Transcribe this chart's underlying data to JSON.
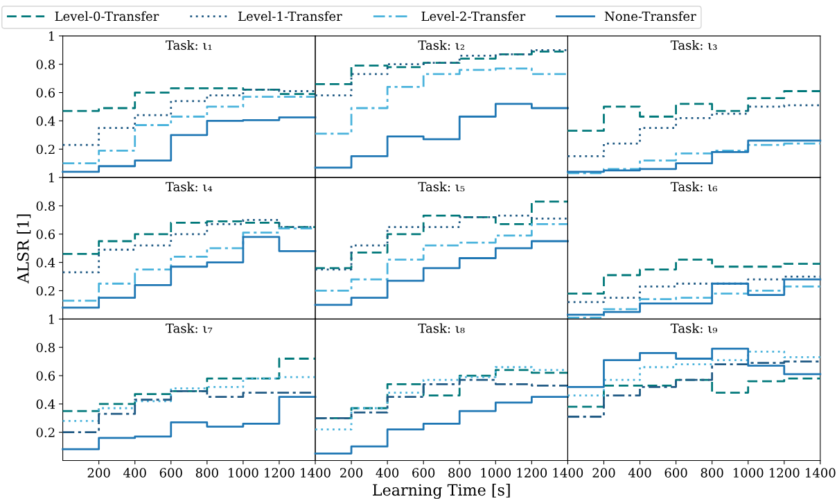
{
  "chart_data": [
    {
      "type": "step",
      "title": "Task: ι₁",
      "legend": "top",
      "xlim": [
        0,
        1400
      ],
      "ylim": [
        0,
        1
      ],
      "yticks": [
        0.2,
        0.4,
        0.6,
        0.8,
        1
      ],
      "tick_labels": "y",
      "x": [
        0,
        200,
        400,
        600,
        800,
        1000,
        1200,
        1400
      ],
      "series": [
        {
          "name": "Level-0-Transfer",
          "color": "#00787a",
          "line_style": "dashed",
          "values": [
            0.47,
            0.49,
            0.6,
            0.63,
            0.63,
            0.62,
            0.59,
            0.59
          ]
        },
        {
          "name": "Level-1-Transfer",
          "color": "#205a84",
          "line_style": "dotted",
          "values": [
            0.23,
            0.35,
            0.44,
            0.54,
            0.58,
            0.62,
            0.61,
            0.61
          ]
        },
        {
          "name": "Level-2-Transfer",
          "color": "#4ab3dc",
          "line_style": "dashdot",
          "values": [
            0.1,
            0.19,
            0.37,
            0.43,
            0.5,
            0.57,
            0.57,
            0.57
          ]
        },
        {
          "name": "None-Transfer",
          "color": "#1f77b4",
          "line_style": "solid",
          "values": [
            0.04,
            0.08,
            0.12,
            0.3,
            0.4,
            0.405,
            0.425,
            0.425
          ]
        }
      ]
    },
    {
      "type": "step",
      "title": "Task: ι₂",
      "xlim": [
        0,
        1400
      ],
      "ylim": [
        0,
        1
      ],
      "tick_labels": false,
      "x": [
        0,
        200,
        400,
        600,
        800,
        1000,
        1200,
        1400
      ],
      "series": [
        {
          "color": "#00787a",
          "line_style": "dashed",
          "values": [
            0.66,
            0.79,
            0.78,
            0.81,
            0.84,
            0.87,
            0.89,
            0.89
          ]
        },
        {
          "color": "#205a84",
          "line_style": "dotted",
          "values": [
            0.58,
            0.73,
            0.8,
            0.81,
            0.86,
            0.87,
            0.9,
            0.9
          ]
        },
        {
          "color": "#4ab3dc",
          "line_style": "dashdot",
          "values": [
            0.31,
            0.49,
            0.64,
            0.73,
            0.76,
            0.77,
            0.73,
            0.73
          ]
        },
        {
          "color": "#1f77b4",
          "line_style": "solid",
          "values": [
            0.07,
            0.15,
            0.29,
            0.27,
            0.43,
            0.52,
            0.49,
            0.49
          ]
        }
      ]
    },
    {
      "type": "step",
      "title": "Task: ι₃",
      "xlim": [
        0,
        1400
      ],
      "ylim": [
        0,
        1
      ],
      "tick_labels": false,
      "x": [
        0,
        200,
        400,
        600,
        800,
        1000,
        1200,
        1400
      ],
      "series": [
        {
          "color": "#00787a",
          "line_style": "dashed",
          "values": [
            0.33,
            0.5,
            0.43,
            0.52,
            0.47,
            0.56,
            0.61,
            0.61
          ]
        },
        {
          "color": "#205a84",
          "line_style": "dotted",
          "values": [
            0.15,
            0.24,
            0.35,
            0.42,
            0.45,
            0.5,
            0.51,
            0.51
          ]
        },
        {
          "color": "#4ab3dc",
          "line_style": "dashdot",
          "values": [
            0.03,
            0.06,
            0.12,
            0.17,
            0.19,
            0.23,
            0.24,
            0.24
          ]
        },
        {
          "color": "#1f77b4",
          "line_style": "solid",
          "values": [
            0.04,
            0.05,
            0.06,
            0.1,
            0.18,
            0.26,
            0.26,
            0.26
          ]
        }
      ]
    },
    {
      "type": "step",
      "title": "Task: ι₄",
      "ylabel": "ALSR [1]",
      "xlim": [
        0,
        1400
      ],
      "ylim": [
        0,
        1
      ],
      "yticks": [
        0.2,
        0.4,
        0.6,
        0.8,
        1
      ],
      "tick_labels": "y",
      "x": [
        0,
        200,
        400,
        600,
        800,
        1000,
        1200,
        1400
      ],
      "series": [
        {
          "color": "#00787a",
          "line_style": "dashed",
          "values": [
            0.46,
            0.55,
            0.6,
            0.68,
            0.69,
            0.68,
            0.65,
            0.65
          ]
        },
        {
          "color": "#205a84",
          "line_style": "dotted",
          "values": [
            0.33,
            0.49,
            0.52,
            0.6,
            0.67,
            0.7,
            0.65,
            0.65
          ]
        },
        {
          "color": "#4ab3dc",
          "line_style": "dashdot",
          "values": [
            0.13,
            0.25,
            0.35,
            0.44,
            0.5,
            0.61,
            0.64,
            0.64
          ]
        },
        {
          "color": "#1f77b4",
          "line_style": "solid",
          "values": [
            0.08,
            0.15,
            0.24,
            0.37,
            0.4,
            0.58,
            0.48,
            0.48
          ]
        }
      ]
    },
    {
      "type": "step",
      "title": "Task: ι₅",
      "xlim": [
        0,
        1400
      ],
      "ylim": [
        0,
        1
      ],
      "tick_labels": false,
      "x": [
        0,
        200,
        400,
        600,
        800,
        1000,
        1200,
        1400
      ],
      "series": [
        {
          "color": "#00787a",
          "line_style": "dashed",
          "values": [
            0.36,
            0.47,
            0.6,
            0.73,
            0.72,
            0.67,
            0.83,
            0.83
          ]
        },
        {
          "color": "#205a84",
          "line_style": "dotted",
          "values": [
            0.35,
            0.52,
            0.65,
            0.65,
            0.72,
            0.73,
            0.71,
            0.71
          ]
        },
        {
          "color": "#4ab3dc",
          "line_style": "dashdot",
          "values": [
            0.2,
            0.28,
            0.42,
            0.52,
            0.54,
            0.59,
            0.67,
            0.67
          ]
        },
        {
          "color": "#1f77b4",
          "line_style": "solid",
          "values": [
            0.1,
            0.15,
            0.27,
            0.36,
            0.43,
            0.5,
            0.55,
            0.55
          ]
        }
      ]
    },
    {
      "type": "step",
      "title": "Task: ι₆",
      "xlim": [
        0,
        1400
      ],
      "ylim": [
        0,
        1
      ],
      "tick_labels": false,
      "x": [
        0,
        200,
        400,
        600,
        800,
        1000,
        1200,
        1400
      ],
      "series": [
        {
          "color": "#00787a",
          "line_style": "dashed",
          "values": [
            0.18,
            0.31,
            0.35,
            0.42,
            0.37,
            0.37,
            0.39,
            0.39
          ]
        },
        {
          "color": "#205a84",
          "line_style": "dotted",
          "values": [
            0.12,
            0.15,
            0.23,
            0.25,
            0.25,
            0.28,
            0.3,
            0.3
          ]
        },
        {
          "color": "#4ab3dc",
          "line_style": "dashdot",
          "values": [
            0.01,
            0.07,
            0.14,
            0.15,
            0.18,
            0.2,
            0.23,
            0.23
          ]
        },
        {
          "color": "#1f77b4",
          "line_style": "solid",
          "values": [
            0.03,
            0.05,
            0.11,
            0.11,
            0.25,
            0.17,
            0.28,
            0.28
          ]
        }
      ]
    },
    {
      "type": "step",
      "title": "Task: ι₇",
      "xlim": [
        0,
        1400
      ],
      "ylim": [
        0,
        1
      ],
      "yticks": [
        0.2,
        0.4,
        0.6,
        0.8,
        1
      ],
      "xticks": [
        200,
        400,
        600,
        800,
        1000,
        1200,
        1400
      ],
      "x": [
        0,
        200,
        400,
        600,
        800,
        1000,
        1200,
        1400
      ],
      "series": [
        {
          "color": "#00787a",
          "line_style": "dashed",
          "values": [
            0.35,
            0.4,
            0.47,
            0.49,
            0.58,
            0.58,
            0.72,
            0.72
          ]
        },
        {
          "color": "#4ab3dc",
          "line_style": "dotted",
          "values": [
            0.28,
            0.37,
            0.42,
            0.51,
            0.52,
            0.58,
            0.59,
            0.59
          ]
        },
        {
          "color": "#205a84",
          "line_style": "dashdot",
          "values": [
            0.2,
            0.33,
            0.43,
            0.49,
            0.45,
            0.48,
            0.48,
            0.48
          ]
        },
        {
          "color": "#1f77b4",
          "line_style": "solid",
          "values": [
            0.08,
            0.16,
            0.17,
            0.27,
            0.24,
            0.26,
            0.45,
            0.45
          ]
        }
      ]
    },
    {
      "type": "step",
      "title": "Task: ι₈",
      "xlabel": "Learning Time [s]",
      "xlim": [
        0,
        1400
      ],
      "ylim": [
        0,
        1
      ],
      "xticks": [
        200,
        400,
        600,
        800,
        1000,
        1200,
        1400
      ],
      "tick_labels": "x",
      "x": [
        0,
        200,
        400,
        600,
        800,
        1000,
        1200,
        1400
      ],
      "series": [
        {
          "color": "#00787a",
          "line_style": "dashed",
          "values": [
            0.3,
            0.37,
            0.54,
            0.46,
            0.6,
            0.64,
            0.62,
            0.62
          ]
        },
        {
          "color": "#4ab3dc",
          "line_style": "dotted",
          "values": [
            0.22,
            0.37,
            0.48,
            0.57,
            0.59,
            0.66,
            0.64,
            0.64
          ]
        },
        {
          "color": "#205a84",
          "line_style": "dashdot",
          "values": [
            0.3,
            0.34,
            0.45,
            0.54,
            0.57,
            0.54,
            0.53,
            0.53
          ]
        },
        {
          "color": "#1f77b4",
          "line_style": "solid",
          "values": [
            0.05,
            0.1,
            0.22,
            0.26,
            0.35,
            0.41,
            0.45,
            0.45
          ]
        }
      ]
    },
    {
      "type": "step",
      "title": "Task: ι₉",
      "xlim": [
        0,
        1400
      ],
      "ylim": [
        0,
        1
      ],
      "xticks": [
        200,
        400,
        600,
        800,
        1000,
        1200,
        1400
      ],
      "tick_labels": "x",
      "x": [
        0,
        200,
        400,
        600,
        800,
        1000,
        1200,
        1400
      ],
      "series": [
        {
          "color": "#00787a",
          "line_style": "dashed",
          "values": [
            0.38,
            0.53,
            0.53,
            0.57,
            0.48,
            0.56,
            0.58,
            0.58
          ]
        },
        {
          "color": "#4ab3dc",
          "line_style": "dotted",
          "values": [
            0.46,
            0.57,
            0.66,
            0.68,
            0.71,
            0.77,
            0.73,
            0.73
          ]
        },
        {
          "color": "#205a84",
          "line_style": "dashdot",
          "values": [
            0.31,
            0.46,
            0.52,
            0.57,
            0.68,
            0.69,
            0.7,
            0.7
          ]
        },
        {
          "color": "#1f77b4",
          "line_style": "solid",
          "values": [
            0.52,
            0.71,
            0.76,
            0.72,
            0.79,
            0.67,
            0.61,
            0.61
          ]
        }
      ]
    }
  ]
}
